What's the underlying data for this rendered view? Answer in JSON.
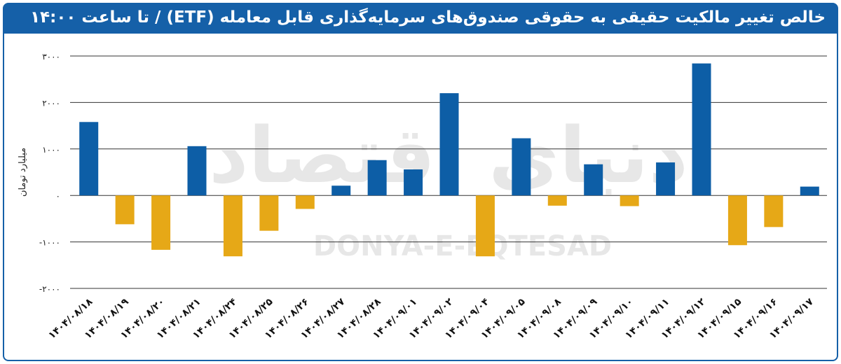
{
  "title": "خالص تغییر مالکیت حقیقی به حقوقی صندوق‌های سرمایه‌گذاری قابل معامله (ETF) / تا ساعت ۱۴:۰۰",
  "watermark": {
    "fa": "دنیای اقتصاد",
    "en": "DONYA-E-EQTESAD"
  },
  "colors": {
    "title_bg": "#1560a8",
    "positive": "#0d5ea6",
    "negative": "#e6a817",
    "grid": "#333333"
  },
  "chart_data": {
    "type": "bar",
    "ylabel": "میلیارد تومان",
    "ylim": [
      -2000,
      3000
    ],
    "yticks": [
      3000,
      2000,
      1000,
      0,
      -1000,
      -2000
    ],
    "ytick_labels": [
      "۳۰۰۰",
      "۲۰۰۰",
      "۱۰۰۰",
      "۰",
      "-۱۰۰۰",
      "-۲۰۰۰"
    ],
    "grid": true,
    "legend": "none",
    "categories": [
      "۱۴۰۴/۰۸/۱۸",
      "۱۴۰۴/۰۸/۱۹",
      "۱۴۰۴/۰۸/۲۰",
      "۱۴۰۴/۰۸/۲۱",
      "۱۴۰۴/۰۸/۲۴",
      "۱۴۰۴/۰۸/۲۵",
      "۱۴۰۴/۰۸/۲۶",
      "۱۴۰۴/۰۸/۲۷",
      "۱۴۰۴/۰۸/۲۸",
      "۱۴۰۴/۰۹/۰۱",
      "۱۴۰۴/۰۹/۰۲",
      "۱۴۰۴/۰۹/۰۴",
      "۱۴۰۴/۰۹/۰۵",
      "۱۴۰۴/۰۹/۰۸",
      "۱۴۰۴/۰۹/۰۹",
      "۱۴۰۴/۰۹/۱۰",
      "۱۴۰۴/۰۹/۱۱",
      "۱۴۰۴/۰۹/۱۲",
      "۱۴۰۴/۰۹/۱۵",
      "۱۴۰۴/۰۹/۱۶",
      "۱۴۰۴/۰۹/۱۷"
    ],
    "values": [
      1580,
      -620,
      -1170,
      1060,
      -1310,
      -760,
      -290,
      210,
      760,
      560,
      2200,
      -1310,
      1230,
      -220,
      670,
      -230,
      710,
      2840,
      -1070,
      -680,
      190
    ]
  }
}
